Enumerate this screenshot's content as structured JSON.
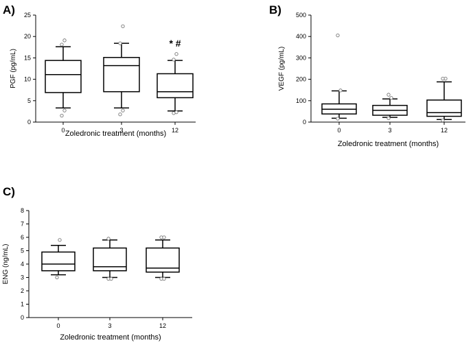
{
  "chart_data": [
    {
      "panel": "A)",
      "type": "boxplot",
      "title": "",
      "xlabel": "Zoledronic treatment (months)",
      "ylabel": "PGF (pg/mL)",
      "ylim": [
        0,
        25
      ],
      "yticks": [
        "0",
        "5",
        "10",
        "15",
        "20",
        "25"
      ],
      "categories": [
        "0",
        "3",
        "12"
      ],
      "boxes": [
        {
          "whisker_low": 3.3,
          "q1": 6.9,
          "median": 11.1,
          "q3": 14.4,
          "whisker_high": 17.6,
          "outliers": [
            1.5,
            2.7,
            18.1,
            19.1
          ]
        },
        {
          "whisker_low": 3.3,
          "q1": 7.1,
          "median": 13.2,
          "q3": 15.1,
          "whisker_high": 18.4,
          "outliers": [
            1.8,
            2.7,
            18.4,
            22.4
          ]
        },
        {
          "whisker_low": 2.6,
          "q1": 5.7,
          "median": 7.1,
          "q3": 11.3,
          "whisker_high": 14.4,
          "outliers": [
            2.1,
            2.3,
            14.6,
            15.9
          ]
        }
      ],
      "annotations": [
        {
          "category": "12",
          "text": "* #"
        }
      ]
    },
    {
      "panel": "B)",
      "type": "boxplot",
      "title": "",
      "xlabel": "Zoledronic treatment (months)",
      "ylabel": "VEGF (pg/mL)",
      "ylim": [
        0,
        500
      ],
      "yticks": [
        "0",
        "100",
        "200",
        "300",
        "400",
        "500"
      ],
      "categories": [
        "0",
        "3",
        "12"
      ],
      "boxes": [
        {
          "whisker_low": 18,
          "q1": 38,
          "median": 60,
          "q3": 85,
          "whisker_high": 146,
          "outliers": [
            16,
            148,
            405
          ]
        },
        {
          "whisker_low": 22,
          "q1": 32,
          "median": 55,
          "q3": 78,
          "whisker_high": 108,
          "outliers": [
            18,
            113,
            128
          ]
        },
        {
          "whisker_low": 12,
          "q1": 27,
          "median": 44,
          "q3": 103,
          "whisker_high": 188,
          "outliers": [
            8,
            203,
            203
          ]
        }
      ],
      "annotations": []
    },
    {
      "panel": "C)",
      "type": "boxplot",
      "title": "",
      "xlabel": "Zoledronic treatment (months)",
      "ylabel": "ENG (ng/mL)",
      "ylim": [
        0,
        8
      ],
      "yticks": [
        "0",
        "1",
        "2",
        "3",
        "4",
        "5",
        "6",
        "7",
        "8"
      ],
      "categories": [
        "0",
        "3",
        "12"
      ],
      "boxes": [
        {
          "whisker_low": 3.2,
          "q1": 3.5,
          "median": 4.0,
          "q3": 4.9,
          "whisker_high": 5.4,
          "outliers": [
            3.0,
            5.8
          ]
        },
        {
          "whisker_low": 3.0,
          "q1": 3.5,
          "median": 3.8,
          "q3": 5.2,
          "whisker_high": 5.8,
          "outliers": [
            2.9,
            2.9,
            5.9
          ]
        },
        {
          "whisker_low": 3.0,
          "q1": 3.4,
          "median": 3.7,
          "q3": 5.2,
          "whisker_high": 5.8,
          "outliers": [
            2.9,
            2.9,
            6.0,
            6.0
          ]
        }
      ],
      "annotations": []
    }
  ]
}
